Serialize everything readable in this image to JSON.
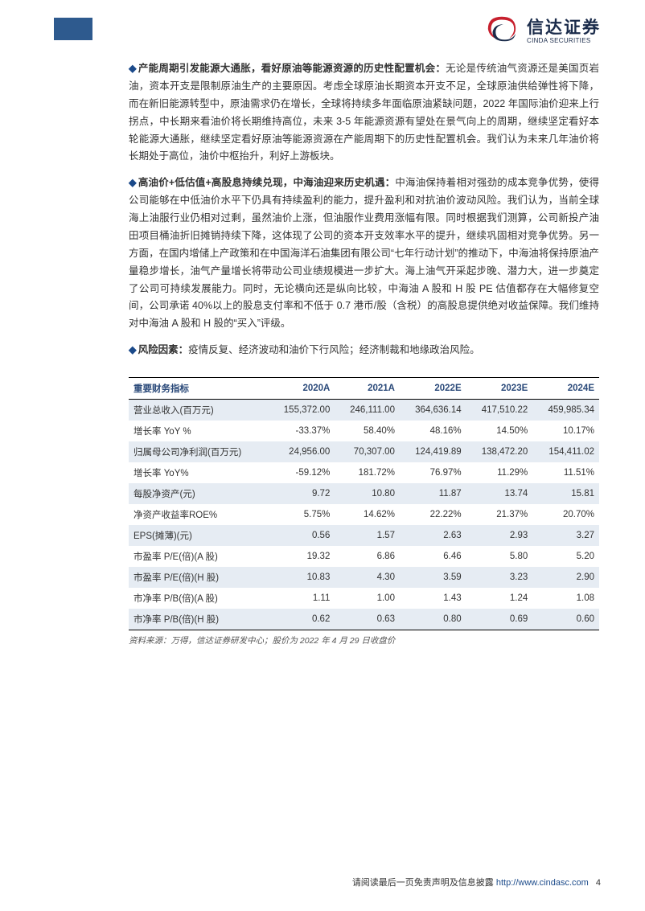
{
  "logo": {
    "cn": "信达证券",
    "en": "CINDA SECURITIES",
    "swirl_color_red": "#c7202e",
    "swirl_color_blue": "#1a2b4a"
  },
  "paragraphs": {
    "p1_lead": "产能周期引发能源大通胀，看好原油等能源资源的历史性配置机会：",
    "p1_body": "无论是传统油气资源还是美国页岩油，资本开支是限制原油生产的主要原因。考虑全球原油长期资本开支不足，全球原油供给弹性将下降，而在新旧能源转型中，原油需求仍在增长，全球将持续多年面临原油紧缺问题，2022 年国际油价迎来上行拐点，中长期来看油价将长期维持高位，未来 3-5 年能源资源有望处在景气向上的周期，继续坚定看好本轮能源大通胀，继续坚定看好原油等能源资源在产能周期下的历史性配置机会。我们认为未来几年油价将长期处于高位，油价中枢抬升，利好上游板块。",
    "p2_lead": "高油价+低估值+高股息持续兑现，中海油迎来历史机遇：",
    "p2_body": "中海油保持着相对强劲的成本竞争优势，使得公司能够在中低油价水平下仍具有持续盈利的能力，提升盈利和对抗油价波动风险。我们认为，当前全球海上油服行业仍相对过剩，虽然油价上涨，但油服作业费用涨幅有限。同时根据我们测算，公司新投产油田项目桶油折旧摊销持续下降，这体现了公司的资本开支效率水平的提升，继续巩固相对竞争优势。另一方面，在国内增储上产政策和在中国海洋石油集团有限公司“七年行动计划”的推动下，中海油将保持原油产量稳步增长，油气产量增长将带动公司业绩规模进一步扩大。海上油气开采起步晚、潜力大，进一步奠定了公司可持续发展能力。同时，无论横向还是纵向比较，中海油 A 股和 H 股 PE 估值都存在大幅修复空间，公司承诺 40%以上的股息支付率和不低于 0.7 港币/股（含税）的高股息提供绝对收益保障。我们维持对中海油 A 股和 H 股的“买入”评级。",
    "p3_lead": "风险因素：",
    "p3_body": "疫情反复、经济波动和油价下行风险；经济制裁和地缘政治风险。"
  },
  "table": {
    "header": [
      "重要财务指标",
      "2020A",
      "2021A",
      "2022E",
      "2023E",
      "2024E"
    ],
    "rows": [
      [
        "营业总收入(百万元)",
        "155,372.00",
        "246,111.00",
        "364,636.14",
        "417,510.22",
        "459,985.34"
      ],
      [
        "增长率 YoY %",
        "-33.37%",
        "58.40%",
        "48.16%",
        "14.50%",
        "10.17%"
      ],
      [
        "归属母公司净利润(百万元)",
        "24,956.00",
        "70,307.00",
        "124,419.89",
        "138,472.20",
        "154,411.02"
      ],
      [
        "增长率 YoY%",
        "-59.12%",
        "181.72%",
        "76.97%",
        "11.29%",
        "11.51%"
      ],
      [
        "每股净资产(元)",
        "9.72",
        "10.80",
        "11.87",
        "13.74",
        "15.81"
      ],
      [
        "净资产收益率ROE%",
        "5.75%",
        "14.62%",
        "22.22%",
        "21.37%",
        "20.70%"
      ],
      [
        "EPS(摊薄)(元)",
        "0.56",
        "1.57",
        "2.63",
        "2.93",
        "3.27"
      ],
      [
        "市盈率 P/E(倍)(A 股)",
        "19.32",
        "6.86",
        "6.46",
        "5.80",
        "5.20"
      ],
      [
        "市盈率 P/E(倍)(H 股)",
        "10.83",
        "4.30",
        "3.59",
        "3.23",
        "2.90"
      ],
      [
        "市净率 P/B(倍)(A 股)",
        "1.11",
        "1.00",
        "1.43",
        "1.24",
        "1.08"
      ],
      [
        "市净率 P/B(倍)(H 股)",
        "0.62",
        "0.63",
        "0.80",
        "0.69",
        "0.60"
      ]
    ],
    "source": "资料来源：万得，信达证券研发中心；股价为 2022 年 4 月 29 日收盘价",
    "header_color": "#2b4a7a",
    "odd_row_bg": "#e6ecf3"
  },
  "footer": {
    "text": "请阅读最后一页免责声明及信息披露",
    "link": "http://www.cindasc.com",
    "page": "4"
  }
}
